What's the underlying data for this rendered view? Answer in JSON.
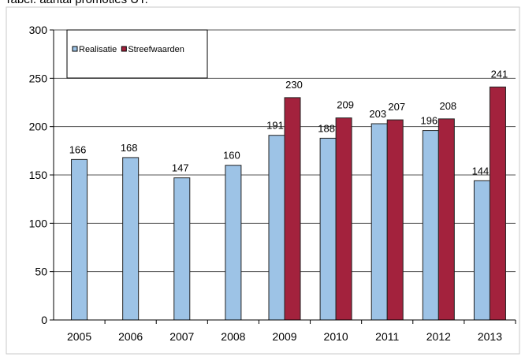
{
  "caption": "Tabel: aantal promoties UT:",
  "chart_data": {
    "type": "bar",
    "title": "",
    "xlabel": "",
    "ylabel": "",
    "categories": [
      "2005",
      "2006",
      "2007",
      "2008",
      "2009",
      "2010",
      "2011",
      "2012",
      "2013"
    ],
    "ylim": [
      0,
      300
    ],
    "yticks": [
      0,
      50,
      100,
      150,
      200,
      250,
      300
    ],
    "grid": true,
    "legend_position": "top-left",
    "series": [
      {
        "name": "Realisatie",
        "color": "#9dc3e6",
        "values": [
          166,
          168,
          147,
          160,
          191,
          188,
          203,
          196,
          144
        ]
      },
      {
        "name": "Streefwaarden",
        "color": "#a3223d",
        "values": [
          null,
          null,
          null,
          null,
          230,
          209,
          207,
          208,
          241
        ]
      }
    ]
  }
}
